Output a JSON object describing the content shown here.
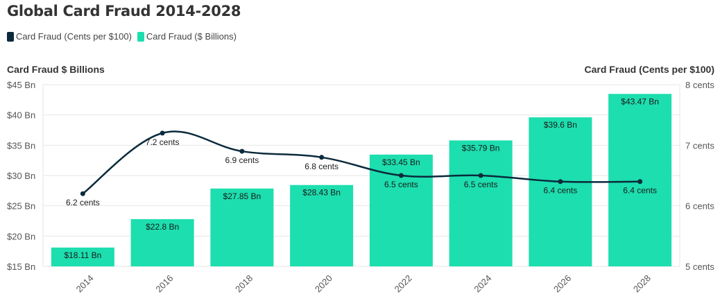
{
  "title": "Global Card Fraud 2014-2028",
  "legend": [
    {
      "label": "Card Fraud (Cents per $100)",
      "color": "#0b2a3c",
      "icon": "square"
    },
    {
      "label": "Card Fraud ($ Billions)",
      "color": "#1ddeae",
      "icon": "square"
    }
  ],
  "left_axis_title": "Card Fraud $ Billions",
  "right_axis_title": "Card Fraud (Cents per $100)",
  "chart_data": {
    "type": "bar",
    "categories": [
      "2014",
      "2016",
      "2018",
      "2020",
      "2022",
      "2024",
      "2026",
      "2028"
    ],
    "series": [
      {
        "name": "Card Fraud ($ Billions)",
        "type": "bar",
        "axis": "left",
        "values": [
          18.11,
          22.8,
          27.85,
          28.43,
          33.45,
          35.79,
          39.6,
          43.47
        ],
        "labels": [
          "$18.11 Bn",
          "$22.8 Bn",
          "$27.85 Bn",
          "$28.43 Bn",
          "$33.45 Bn",
          "$35.79 Bn",
          "$39.6 Bn",
          "$43.47 Bn"
        ],
        "color": "#1ddeae"
      },
      {
        "name": "Card Fraud (Cents per $100)",
        "type": "line",
        "axis": "right",
        "values": [
          6.2,
          7.2,
          6.9,
          6.8,
          6.5,
          6.5,
          6.4,
          6.4
        ],
        "labels": [
          "6.2 cents",
          "7.2 cents",
          "6.9 cents",
          "6.8 cents",
          "6.5 cents",
          "6.5 cents",
          "6.4 cents",
          "6.4 cents"
        ],
        "color": "#0b2a3c"
      }
    ],
    "left_axis": {
      "range": [
        15,
        45
      ],
      "ticks": [
        15,
        20,
        25,
        30,
        35,
        40,
        45
      ],
      "tick_labels": [
        "$15 Bn",
        "$20 Bn",
        "$25 Bn",
        "$30 Bn",
        "$35 Bn",
        "$40 Bn",
        "$45 Bn"
      ]
    },
    "right_axis": {
      "range": [
        5,
        8
      ],
      "ticks": [
        5,
        6,
        7,
        8
      ],
      "tick_labels": [
        "5 cents",
        "6 cents",
        "7 cents",
        "8 cents"
      ]
    },
    "grid": true,
    "legend_position": "top-left"
  }
}
